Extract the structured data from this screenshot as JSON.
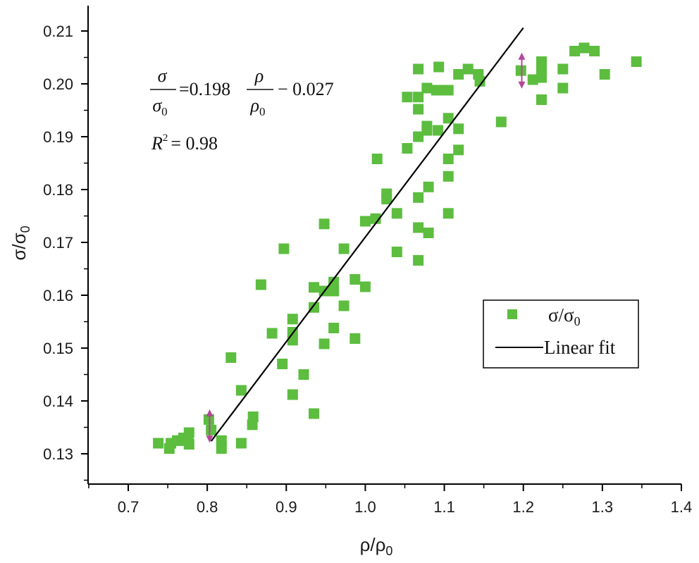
{
  "chart_data": {
    "type": "scatter",
    "title": "",
    "xlabel": "ρ/ρ",
    "xlabel_sub": "0",
    "ylabel": "σ/σ",
    "ylabel_sub": "0",
    "xlim": [
      0.65,
      1.4
    ],
    "ylim": [
      0.125,
      0.212
    ],
    "x_ticks": [
      0.7,
      0.8,
      0.9,
      1.0,
      1.1,
      1.2,
      1.3,
      1.4
    ],
    "x_tick_labels": [
      "0.7",
      "0.8",
      "0.9",
      "1.0",
      "1.1",
      "1.2",
      "1.3",
      "1.4"
    ],
    "y_ticks": [
      0.13,
      0.14,
      0.15,
      0.16,
      0.17,
      0.18,
      0.19,
      0.2,
      0.21
    ],
    "y_tick_labels": [
      "0.13",
      "0.14",
      "0.15",
      "0.16",
      "0.17",
      "0.18",
      "0.19",
      "0.20",
      "0.21"
    ],
    "grid": false,
    "colors": {
      "points": "#5cbd3f",
      "fit": "#000000",
      "error_bar": "#b3479a"
    },
    "series": [
      {
        "name": "σ/σ",
        "name_sub": "0",
        "marker": "square",
        "points": [
          [
            0.738,
            0.132
          ],
          [
            0.752,
            0.131
          ],
          [
            0.754,
            0.132
          ],
          [
            0.762,
            0.1325
          ],
          [
            0.768,
            0.1325
          ],
          [
            0.77,
            0.133
          ],
          [
            0.776,
            0.1325
          ],
          [
            0.777,
            0.134
          ],
          [
            0.777,
            0.1318
          ],
          [
            0.802,
            0.1365
          ],
          [
            0.805,
            0.1345
          ],
          [
            0.818,
            0.131
          ],
          [
            0.818,
            0.1325
          ],
          [
            0.83,
            0.1482
          ],
          [
            0.843,
            0.142
          ],
          [
            0.843,
            0.132
          ],
          [
            0.857,
            0.1355
          ],
          [
            0.858,
            0.137
          ],
          [
            0.868,
            0.162
          ],
          [
            0.882,
            0.1528
          ],
          [
            0.895,
            0.147
          ],
          [
            0.897,
            0.1688
          ],
          [
            0.908,
            0.1555
          ],
          [
            0.908,
            0.153
          ],
          [
            0.908,
            0.1515
          ],
          [
            0.908,
            0.1412
          ],
          [
            0.922,
            0.145
          ],
          [
            0.935,
            0.1615
          ],
          [
            0.935,
            0.1577
          ],
          [
            0.935,
            0.1376
          ],
          [
            0.948,
            0.1735
          ],
          [
            0.948,
            0.1508
          ],
          [
            0.948,
            0.1608
          ],
          [
            0.96,
            0.1625
          ],
          [
            0.96,
            0.1608
          ],
          [
            0.96,
            0.1538
          ],
          [
            0.973,
            0.1688
          ],
          [
            0.973,
            0.158
          ],
          [
            0.987,
            0.163
          ],
          [
            0.987,
            0.1518
          ],
          [
            1.0,
            0.174
          ],
          [
            1.0,
            0.1616
          ],
          [
            1.013,
            0.1745
          ],
          [
            1.015,
            0.1858
          ],
          [
            1.027,
            0.1792
          ],
          [
            1.027,
            0.1782
          ],
          [
            1.04,
            0.1755
          ],
          [
            1.04,
            0.1682
          ],
          [
            1.053,
            0.1975
          ],
          [
            1.053,
            0.1878
          ],
          [
            1.067,
            0.2028
          ],
          [
            1.067,
            0.1975
          ],
          [
            1.067,
            0.1952
          ],
          [
            1.067,
            0.19
          ],
          [
            1.067,
            0.1785
          ],
          [
            1.067,
            0.1728
          ],
          [
            1.067,
            0.1666
          ],
          [
            1.078,
            0.1992
          ],
          [
            1.078,
            0.192
          ],
          [
            1.078,
            0.1912
          ],
          [
            1.08,
            0.1805
          ],
          [
            1.08,
            0.1718
          ],
          [
            1.09,
            0.1988
          ],
          [
            1.092,
            0.1912
          ],
          [
            1.093,
            0.2032
          ],
          [
            1.1,
            0.1988
          ],
          [
            1.105,
            0.1988
          ],
          [
            1.105,
            0.1935
          ],
          [
            1.105,
            0.1858
          ],
          [
            1.105,
            0.1825
          ],
          [
            1.105,
            0.1755
          ],
          [
            1.118,
            0.2018
          ],
          [
            1.118,
            0.1915
          ],
          [
            1.118,
            0.1875
          ],
          [
            1.13,
            0.2028
          ],
          [
            1.143,
            0.2018
          ],
          [
            1.145,
            0.2005
          ],
          [
            1.172,
            0.1928
          ],
          [
            1.197,
            0.2025
          ],
          [
            1.212,
            0.2008
          ],
          [
            1.223,
            0.2042
          ],
          [
            1.223,
            0.2032
          ],
          [
            1.223,
            0.2012
          ],
          [
            1.223,
            0.197
          ],
          [
            1.25,
            0.2028
          ],
          [
            1.25,
            0.1992
          ],
          [
            1.265,
            0.2062
          ],
          [
            1.277,
            0.2068
          ],
          [
            1.29,
            0.2062
          ],
          [
            1.303,
            0.2018
          ],
          [
            1.343,
            0.2042
          ]
        ]
      }
    ],
    "fit": {
      "name": "Linear fit",
      "slope": 0.198,
      "intercept": -0.027,
      "x_range": [
        0.805,
        1.2
      ]
    },
    "error_bars": [
      {
        "x": 0.803,
        "y_low": 0.1325,
        "y_high": 0.138
      },
      {
        "x": 1.198,
        "y_low": 0.1995,
        "y_high": 0.2055
      }
    ],
    "annotation": {
      "lhs_num": "σ",
      "lhs_den": "σ",
      "lhs_den_sub": "0",
      "mid": "=0.198",
      "rhs_num": "ρ",
      "rhs_den": "ρ",
      "rhs_den_sub": "0",
      "tail": "− 0.027",
      "r2_var": "R",
      "r2_exp": "2",
      "r2_value": "= 0.98"
    },
    "legend_position": "lower-right"
  }
}
